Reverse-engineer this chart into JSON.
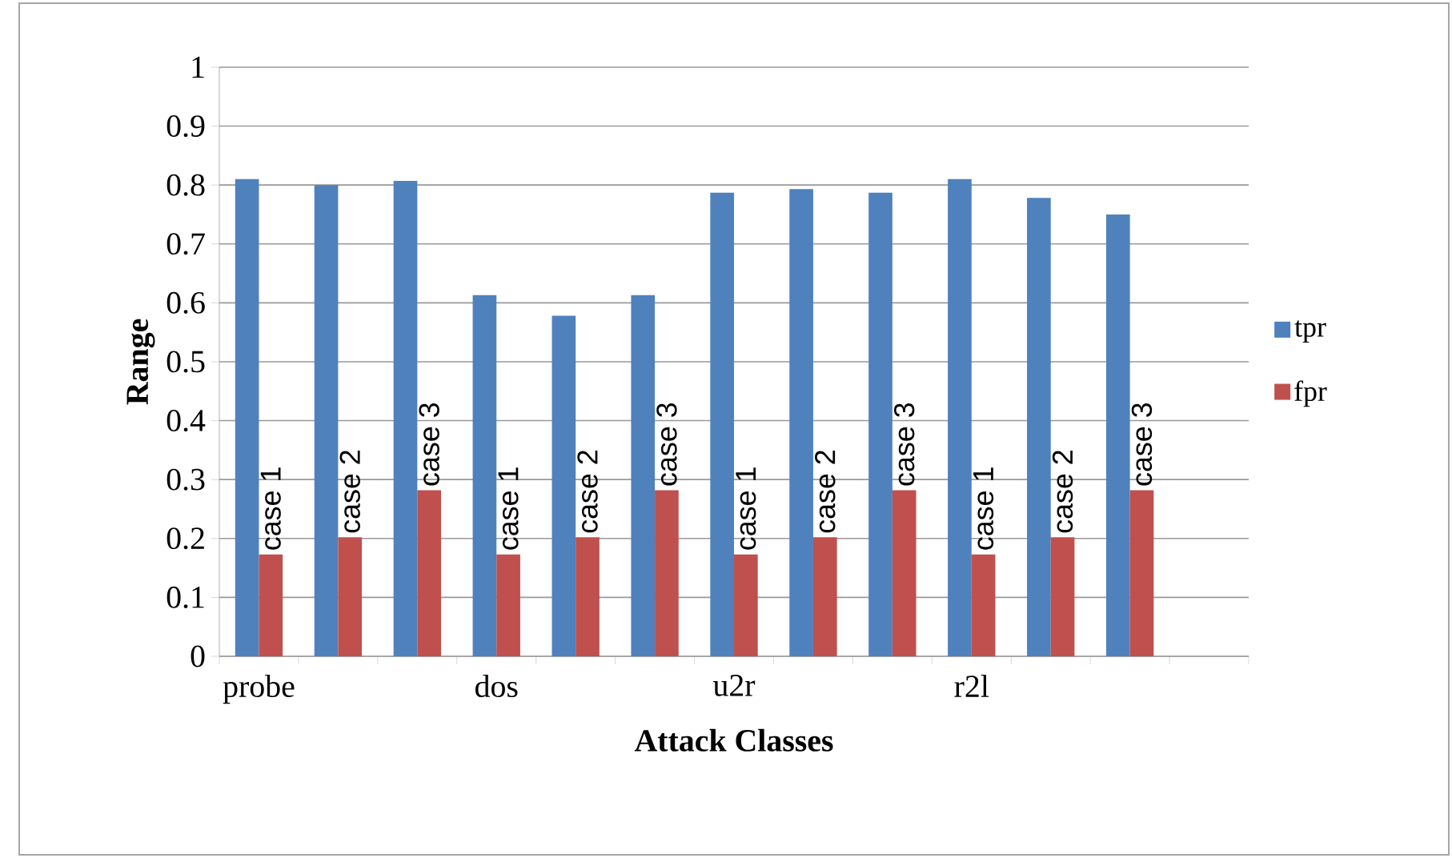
{
  "chart_data": {
    "type": "bar",
    "xlabel": "Attack Classes",
    "ylabel": "Range",
    "categories": [
      "probe",
      null,
      null,
      "dos",
      null,
      null,
      "u2r",
      null,
      null,
      "r2l",
      null,
      null,
      null
    ],
    "series": [
      {
        "name": "tpr",
        "color": "#4f81bd",
        "values": [
          0.81,
          0.8,
          0.807,
          0.613,
          0.578,
          0.613,
          0.787,
          0.793,
          0.787,
          0.81,
          0.778,
          0.75,
          null
        ]
      },
      {
        "name": "fpr",
        "color": "#c0504d",
        "values": [
          0.173,
          0.202,
          0.282,
          0.173,
          0.202,
          0.282,
          0.173,
          0.202,
          0.282,
          0.173,
          0.202,
          0.282,
          null
        ],
        "value_labels": [
          "case 1",
          "case 2",
          "case 3",
          "case 1",
          "case 2",
          "case 3",
          "case 1",
          "case 2",
          "case 3",
          "case 1",
          "case 2",
          "case 3",
          null
        ]
      }
    ],
    "ylim": [
      0,
      1
    ],
    "yticks": [
      0,
      0.1,
      0.2,
      0.3,
      0.4,
      0.5,
      0.6,
      0.7,
      0.8,
      0.9,
      1
    ],
    "grid": "y",
    "legend": "right"
  }
}
